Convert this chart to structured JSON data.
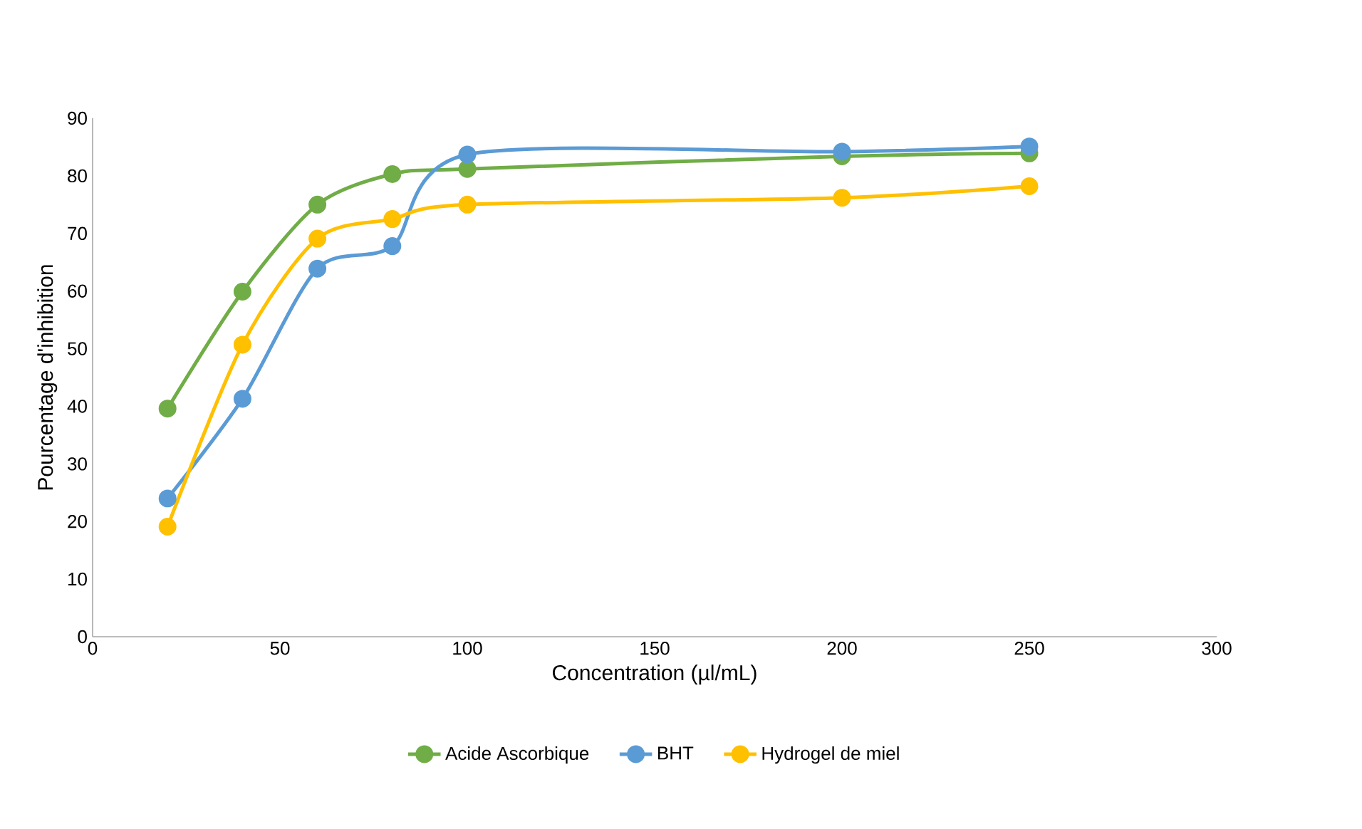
{
  "chart_data": {
    "type": "line",
    "xlabel": "Concentration (µl/mL)",
    "ylabel": "Pourcentage d'inhibition",
    "x": [
      20,
      40,
      60,
      80,
      100,
      200,
      250
    ],
    "series": [
      {
        "name": "Acide Ascorbique",
        "color": "#70ad47",
        "values": [
          39.6,
          59.9,
          75.0,
          80.3,
          81.2,
          83.4,
          83.9
        ]
      },
      {
        "name": "BHT",
        "color": "#5b9bd5",
        "values": [
          24.0,
          41.3,
          63.9,
          67.8,
          83.7,
          84.2,
          85.1
        ]
      },
      {
        "name": "Hydrogel  de miel",
        "color": "#ffc000",
        "values": [
          19.1,
          50.7,
          69.1,
          72.5,
          75.0,
          76.2,
          78.2
        ]
      }
    ],
    "xlim": [
      0,
      300
    ],
    "xticks": [
      0,
      50,
      100,
      150,
      200,
      250,
      300
    ],
    "ylim": [
      0,
      90
    ],
    "yticks": [
      0,
      10,
      20,
      30,
      40,
      50,
      60,
      70,
      80,
      90
    ],
    "grid": false,
    "legend": "bottom",
    "marker": "circle",
    "line_style": "solid"
  }
}
